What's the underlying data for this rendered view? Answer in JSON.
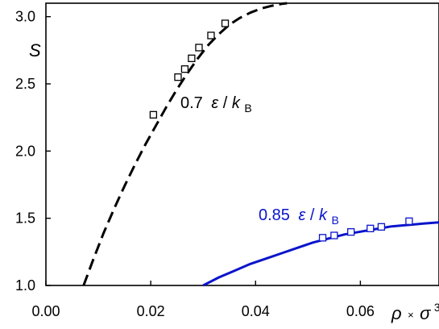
{
  "chart_data": {
    "type": "line",
    "title": "",
    "xlabel": "ρ × σ³",
    "xlabel_parts": {
      "rho": "ρ",
      "times": "×",
      "sigma": "σ",
      "exp": "3"
    },
    "ylabel": "S",
    "xlim": [
      0.0,
      0.075
    ],
    "ylim": [
      1.0,
      3.1
    ],
    "x_ticks": [
      0.0,
      0.02,
      0.04,
      0.06
    ],
    "x_tick_labels": [
      "0.00",
      "0.02",
      "0.04",
      "0.06"
    ],
    "y_ticks": [
      1.0,
      1.5,
      2.0,
      2.5,
      3.0
    ],
    "y_tick_labels": [
      "1.0",
      "1.5",
      "2.0",
      "2.5",
      "3.0"
    ],
    "grid": false,
    "series": [
      {
        "name": "0.7 ε/kB",
        "label_parts": {
          "value": "0.7",
          "eps": "ε",
          "slash": "/",
          "k": "k",
          "sub": "B"
        },
        "color": "#000000",
        "line_style": "dashed",
        "curve": {
          "x": [
            0.0072,
            0.009,
            0.011,
            0.013,
            0.015,
            0.017,
            0.019,
            0.021,
            0.023,
            0.025,
            0.027,
            0.029,
            0.031,
            0.033,
            0.035,
            0.037,
            0.039,
            0.041,
            0.043,
            0.045,
            0.046
          ],
          "y": [
            1.0,
            1.19,
            1.39,
            1.57,
            1.74,
            1.9,
            2.05,
            2.19,
            2.33,
            2.46,
            2.58,
            2.69,
            2.79,
            2.87,
            2.94,
            2.99,
            3.03,
            3.06,
            3.08,
            3.095,
            3.1
          ]
        },
        "markers": {
          "x": [
            0.0205,
            0.0252,
            0.0265,
            0.0278,
            0.0292,
            0.0315,
            0.0342
          ],
          "y": [
            2.27,
            2.55,
            2.61,
            2.69,
            2.77,
            2.86,
            2.95
          ]
        }
      },
      {
        "name": "0.85 ε/kB",
        "label_parts": {
          "value": "0.85",
          "eps": "ε",
          "slash": "/",
          "k": "k",
          "sub": "B"
        },
        "color": "#0a14cc",
        "line_style": "solid",
        "curve": {
          "x": [
            0.03,
            0.033,
            0.036,
            0.039,
            0.042,
            0.045,
            0.048,
            0.051,
            0.054,
            0.057,
            0.06,
            0.063,
            0.066,
            0.069,
            0.072,
            0.075
          ],
          "y": [
            1.0,
            1.06,
            1.11,
            1.16,
            1.2,
            1.24,
            1.28,
            1.32,
            1.35,
            1.38,
            1.4,
            1.42,
            1.44,
            1.45,
            1.46,
            1.47
          ]
        },
        "markers": {
          "x": [
            0.0528,
            0.055,
            0.0582,
            0.0619,
            0.064,
            0.0693
          ],
          "y": [
            1.355,
            1.372,
            1.398,
            1.424,
            1.436,
            1.478
          ]
        }
      }
    ]
  }
}
